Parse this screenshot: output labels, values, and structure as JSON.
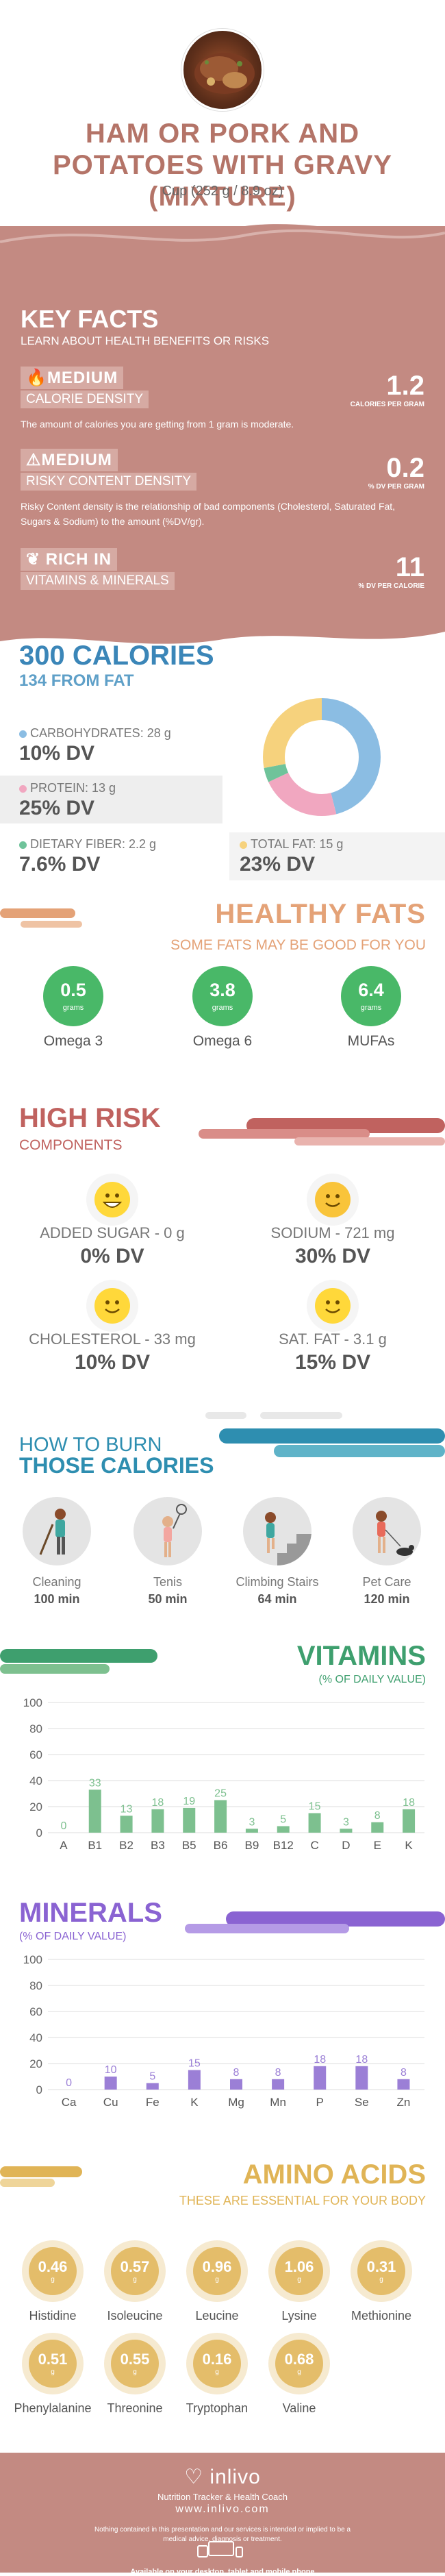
{
  "header": {
    "title": "HAM OR PORK AND POTATOES WITH GRAVY (MIXTURE)",
    "serving": "Cup (252 g / 8.9 oz)"
  },
  "key_facts": {
    "title": "KEY FACTS",
    "subtitle": "LEARN ABOUT HEALTH BENEFITS OR RISKS",
    "facts": [
      {
        "label1": "MEDIUM",
        "label2": "CALORIE DENSITY",
        "value": "1.2",
        "unit": "CALORIES PER GRAM",
        "desc": "The amount of calories you are getting from 1 gram is moderate.",
        "icon": "fire-icon"
      },
      {
        "label1": "MEDIUM",
        "label2": "RISKY CONTENT DENSITY",
        "value": "0.2",
        "unit": "% DV PER GRAM",
        "desc": "Risky Content density is the relationship of bad components (Cholesterol, Saturated Fat, Sugars & Sodium) to the amount (%DV/gr).",
        "icon": "warning-icon"
      },
      {
        "label1": "RICH  IN",
        "label2": "VITAMINS & MINERALS",
        "value": "11",
        "unit": "% DV PER CALORIE",
        "desc": "",
        "icon": "leaf-icon"
      }
    ]
  },
  "calories": {
    "title": "300 CALORIES",
    "from_fat": "134 FROM FAT",
    "macros": [
      {
        "label": "CARBOHYDRATES: 28 g",
        "dv": "10% DV",
        "color": "#8bbde3"
      },
      {
        "label": "PROTEIN: 13 g",
        "dv": "25% DV",
        "color": "#f1a7c0"
      },
      {
        "label": "DIETARY FIBER: 2.2 g",
        "dv": "7.6% DV",
        "color": "#6fc39a"
      },
      {
        "label": "TOTAL FAT: 15 g",
        "dv": "23% DV",
        "color": "#f6d27d"
      }
    ],
    "donut": [
      {
        "name": "carbs",
        "value": 46,
        "color": "#8bbde3"
      },
      {
        "name": "protein",
        "value": 22,
        "color": "#f1a7c0"
      },
      {
        "name": "fiber",
        "value": 4,
        "color": "#6fc39a"
      },
      {
        "name": "fat",
        "value": 28,
        "color": "#f6d27d"
      }
    ]
  },
  "healthy_fats": {
    "title": "HEALTHY FATS",
    "subtitle": "SOME FATS MAY BE GOOD FOR YOU",
    "items": [
      {
        "value": "0.5",
        "unit": "grams",
        "name": "Omega 3"
      },
      {
        "value": "3.8",
        "unit": "grams",
        "name": "Omega 6"
      },
      {
        "value": "6.4",
        "unit": "grams",
        "name": "MUFAs"
      }
    ]
  },
  "high_risk": {
    "title": "HIGH RISK",
    "subtitle": "COMPONENTS",
    "items": [
      {
        "name": "ADDED SUGAR - 0 g",
        "dv": "0% DV",
        "face": "grin"
      },
      {
        "name": "SODIUM - 721 mg",
        "dv": "30% DV",
        "face": "smile"
      },
      {
        "name": "CHOLESTEROL - 33 mg",
        "dv": "10% DV",
        "face": "smile"
      },
      {
        "name": "SAT. FAT - 3.1 g",
        "dv": "15% DV",
        "face": "smile"
      }
    ]
  },
  "burn": {
    "title1": "HOW TO BURN",
    "title2": "THOSE CALORIES",
    "items": [
      {
        "name": "Cleaning",
        "minutes": "100 min",
        "icon": "cleaning-person-icon"
      },
      {
        "name": "Tenis",
        "minutes": "50 min",
        "icon": "tennis-player-icon"
      },
      {
        "name": "Climbing Stairs",
        "minutes": "64 min",
        "icon": "stairs-climber-icon"
      },
      {
        "name": "Pet Care",
        "minutes": "120 min",
        "icon": "dog-walker-icon"
      }
    ]
  },
  "vitamins": {
    "title": "VITAMINS",
    "subtitle": "(% OF DAILY VALUE)",
    "chart_data": {
      "type": "bar",
      "categories": [
        "A",
        "B1",
        "B2",
        "B3",
        "B5",
        "B6",
        "B9",
        "B12",
        "C",
        "D",
        "E",
        "K"
      ],
      "values": [
        0,
        33,
        13,
        18,
        19,
        25,
        3,
        5,
        15,
        3,
        8,
        18
      ],
      "ylim": [
        0,
        100
      ],
      "yticks": [
        0,
        20,
        40,
        60,
        80,
        100
      ],
      "color": "#7dc08f"
    }
  },
  "minerals": {
    "title": "MINERALS",
    "subtitle": "(% OF DAILY VALUE)",
    "chart_data": {
      "type": "bar",
      "categories": [
        "Ca",
        "Cu",
        "Fe",
        "K",
        "Mg",
        "Mn",
        "P",
        "Se",
        "Zn"
      ],
      "values": [
        0,
        10,
        5,
        15,
        8,
        8,
        18,
        18,
        8
      ],
      "ylim": [
        0,
        100
      ],
      "yticks": [
        0,
        20,
        40,
        60,
        80,
        100
      ],
      "color": "#9b7fd6"
    }
  },
  "amino": {
    "title": "AMINO ACIDS",
    "subtitle": "THESE ARE ESSENTIAL FOR YOUR BODY",
    "unit": "g",
    "items": [
      {
        "value": "0.46",
        "name": "Histidine"
      },
      {
        "value": "0.57",
        "name": "Isoleucine"
      },
      {
        "value": "0.96",
        "name": "Leucine"
      },
      {
        "value": "1.06",
        "name": "Lysine"
      },
      {
        "value": "0.31",
        "name": "Methionine"
      },
      {
        "value": "0.51",
        "name": "Phenylalanine"
      },
      {
        "value": "0.55",
        "name": "Threonine"
      },
      {
        "value": "0.16",
        "name": "Tryptophan"
      },
      {
        "value": "0.68",
        "name": "Valine"
      }
    ]
  },
  "footer": {
    "brand": "inlivo",
    "tagline": "Nutrition Tracker & Health Coach",
    "site": "www.inlivo.com",
    "disclaimer": "Nothing contained in this presentation and our services is intended or implied to be a medical advice, diagnosis or treatment.",
    "available": "Available on your desktop, tablet and mobile phone"
  }
}
